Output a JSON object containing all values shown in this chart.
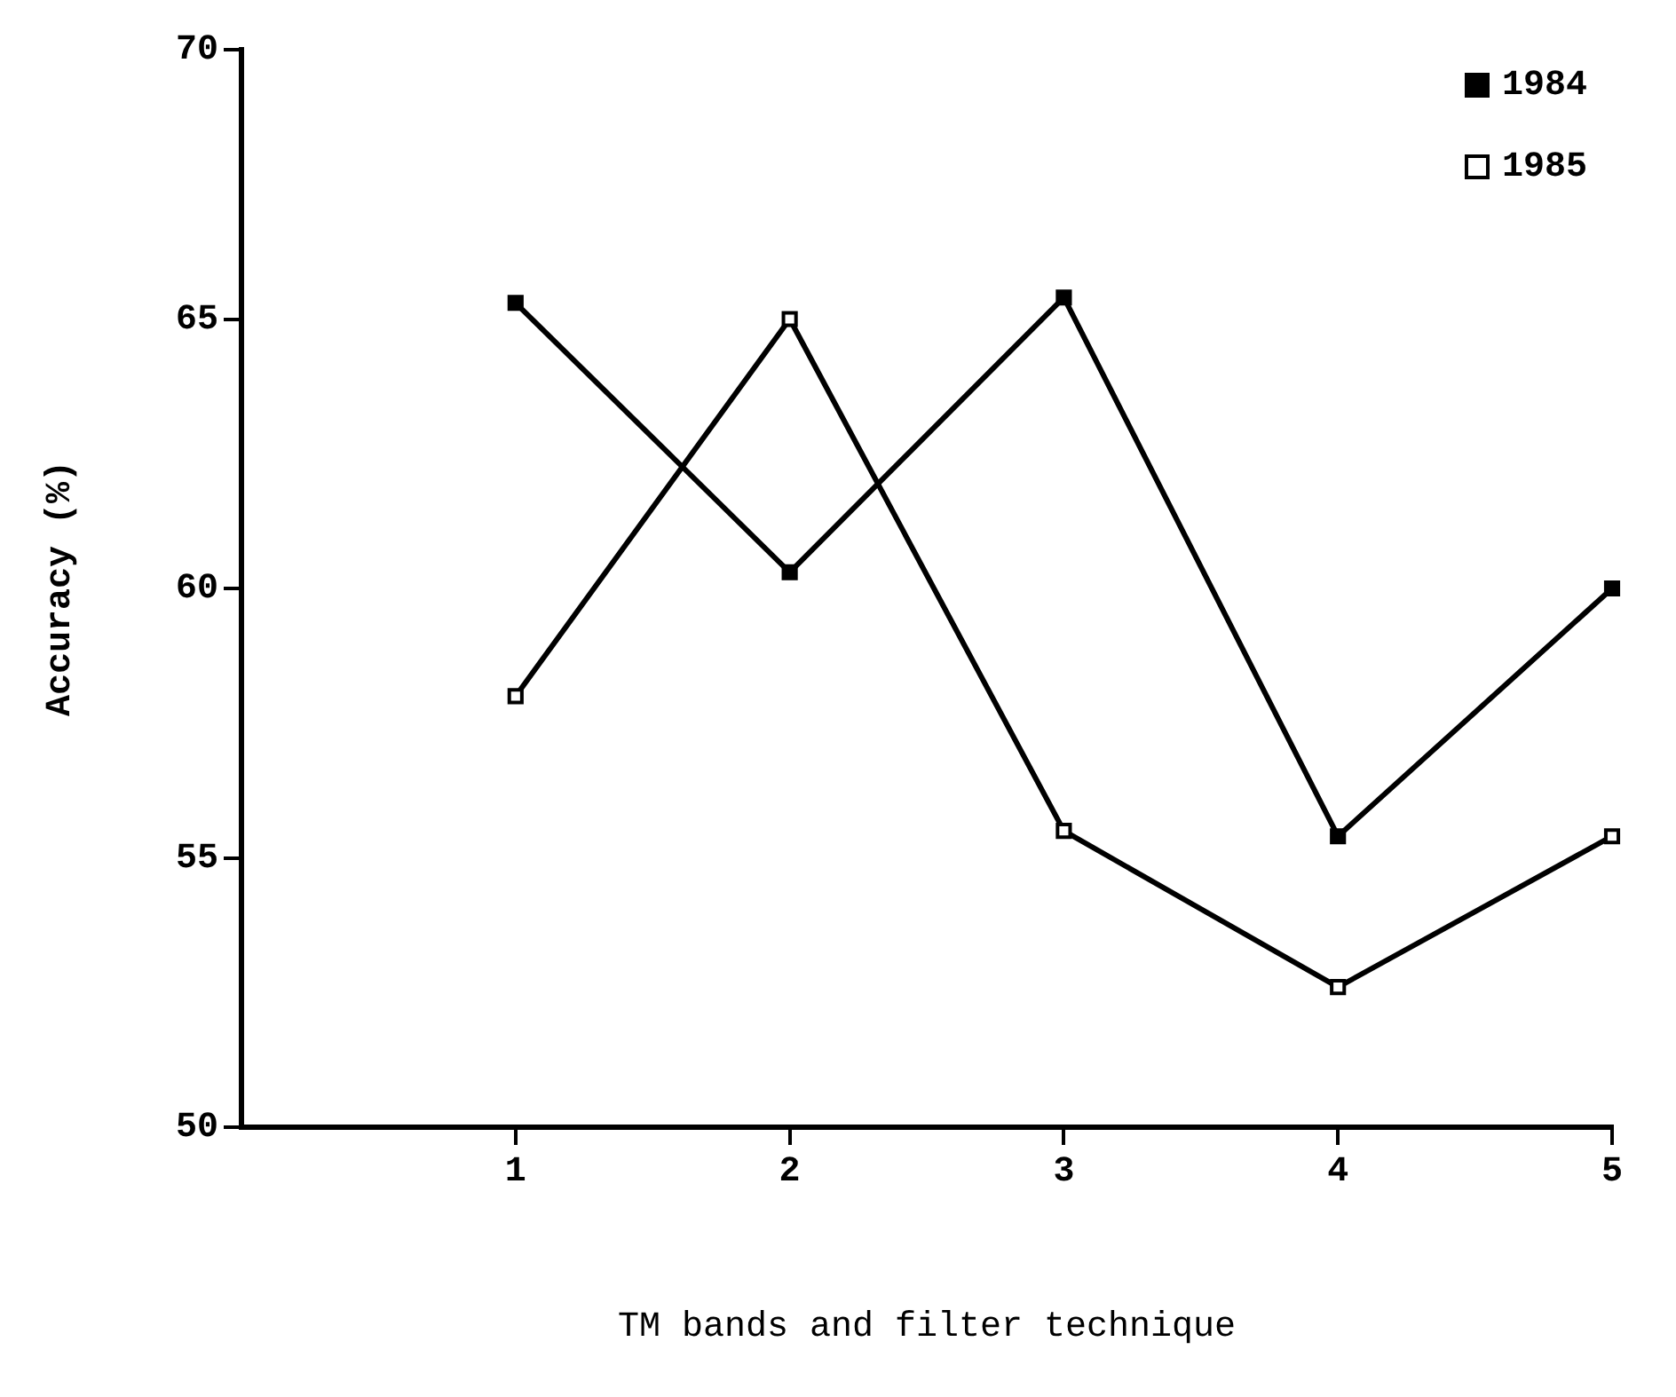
{
  "chart_data": {
    "type": "line",
    "xlabel": "TM bands and filter technique",
    "ylabel": "Accuracy (%)",
    "x": [
      1,
      2,
      3,
      4,
      5
    ],
    "xlim": [
      0,
      5
    ],
    "xticks": [
      1,
      2,
      3,
      4,
      5
    ],
    "ylim": [
      50,
      70
    ],
    "yticks": [
      50,
      55,
      60,
      65,
      70
    ],
    "series": [
      {
        "name": "1984",
        "color": "#000000",
        "values": [
          65.3,
          60.3,
          65.4,
          55.4,
          60.0
        ]
      },
      {
        "name": "1985",
        "color": "#000000",
        "values": [
          58.0,
          65.0,
          55.5,
          52.6,
          55.4
        ]
      }
    ],
    "marker": "square",
    "line_style": "solid",
    "grid": false,
    "legend": "top right"
  }
}
